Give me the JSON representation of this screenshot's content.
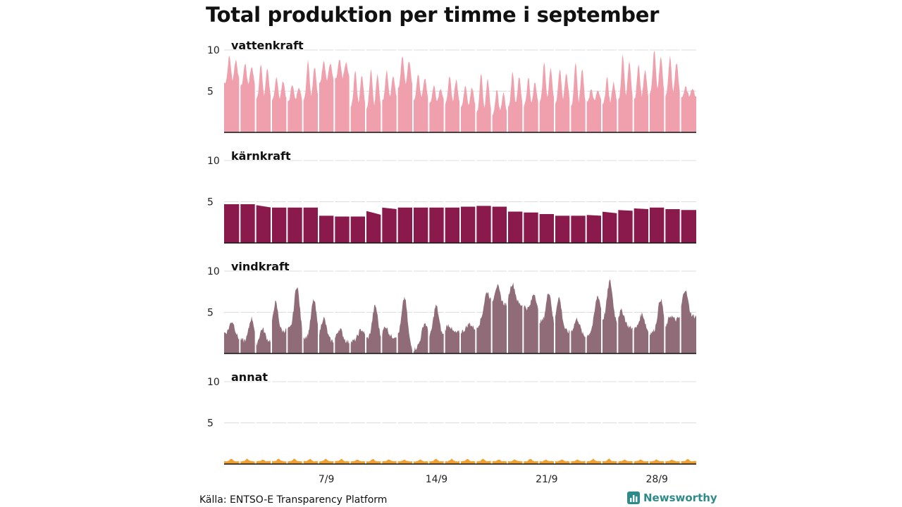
{
  "title": "Total produktion per timme i september",
  "source": "Källa: ENTSO-E Transparency Platform",
  "brand": {
    "name": "Newsworthy",
    "icon": "newsworthy-logo-icon",
    "color": "#2f8a8a"
  },
  "chart_data": {
    "type": "area",
    "title": "Total produktion per timme i september",
    "x_unit": "hour of September",
    "x_ticks": [
      {
        "day": 7,
        "label": "7/9"
      },
      {
        "day": 14,
        "label": "14/9"
      },
      {
        "day": 21,
        "label": "21/9"
      },
      {
        "day": 28,
        "label": "28/9"
      }
    ],
    "y_ticks": [
      5,
      10
    ],
    "ylim": [
      0,
      10
    ],
    "grid": true,
    "day_separators": true,
    "series": [
      {
        "name": "vattenkraft",
        "color": "#f0a0ad",
        "pattern": "daily",
        "daily_peak": [
          9.3,
          8.4,
          8.4,
          6.7,
          5.9,
          8.7,
          8.8,
          8.8,
          7.6,
          7.7,
          7.5,
          9.3,
          7.0,
          5.7,
          6.9,
          5.8,
          7.2,
          5.2,
          7.4,
          6.7,
          8.5,
          7.7,
          8.6,
          5.3,
          6.6,
          9.4,
          8.2,
          10.0,
          9.2,
          5.5
        ],
        "daily_low": [
          6.0,
          5.6,
          4.0,
          3.8,
          3.7,
          4.0,
          6.0,
          6.4,
          3.1,
          2.9,
          3.8,
          5.4,
          4.0,
          3.6,
          3.4,
          3.1,
          2.4,
          2.2,
          3.0,
          3.2,
          3.6,
          3.6,
          3.2,
          3.7,
          3.3,
          3.9,
          4.0,
          4.6,
          4.4,
          4.3
        ]
      },
      {
        "name": "kärnkraft",
        "color": "#8a1a4c",
        "pattern": "flat",
        "daily_peak": [
          4.7,
          4.7,
          4.6,
          4.3,
          4.3,
          4.3,
          3.3,
          3.2,
          3.2,
          3.9,
          4.3,
          4.3,
          4.3,
          4.3,
          4.3,
          4.4,
          4.5,
          4.4,
          3.8,
          3.7,
          3.5,
          3.3,
          3.3,
          3.4,
          3.8,
          4.0,
          4.2,
          4.3,
          4.1,
          4.0
        ],
        "daily_low": [
          4.7,
          4.7,
          4.3,
          4.3,
          4.3,
          4.3,
          3.3,
          3.2,
          3.2,
          3.4,
          4.1,
          4.3,
          4.3,
          4.3,
          4.3,
          4.4,
          4.5,
          4.4,
          3.8,
          3.7,
          3.5,
          3.3,
          3.3,
          3.3,
          3.6,
          3.9,
          4.1,
          4.3,
          4.1,
          4.0
        ]
      },
      {
        "name": "vindkraft",
        "color": "#8f6c78",
        "pattern": "wind",
        "daily_peak": [
          3.9,
          4.3,
          3.0,
          6.2,
          8.2,
          6.5,
          4.3,
          3.0,
          2.9,
          5.8,
          3.3,
          6.8,
          3.7,
          5.8,
          3.5,
          3.6,
          7.5,
          8.2,
          8.5,
          7.3,
          7.5,
          6.8,
          4.2,
          7.0,
          8.8,
          5.2,
          4.8,
          6.6,
          4.6,
          7.8
        ],
        "daily_low": [
          2.5,
          1.7,
          0.9,
          1.6,
          3.0,
          2.0,
          1.6,
          1.5,
          1.4,
          1.8,
          1.5,
          2.2,
          0.4,
          1.8,
          2.2,
          2.6,
          3.0,
          5.8,
          6.0,
          5.9,
          4.0,
          2.8,
          2.6,
          2.0,
          4.0,
          3.7,
          3.0,
          2.5,
          2.7,
          4.5
        ]
      },
      {
        "name": "annat",
        "color": "#f0a030",
        "pattern": "small",
        "daily_peak": [
          0.6,
          0.6,
          0.5,
          0.6,
          0.6,
          0.6,
          0.6,
          0.6,
          0.5,
          0.6,
          0.5,
          0.5,
          0.5,
          0.6,
          0.6,
          0.6,
          0.6,
          0.5,
          0.5,
          0.6,
          0.5,
          0.5,
          0.5,
          0.6,
          0.6,
          0.5,
          0.5,
          0.5,
          0.5,
          0.6
        ],
        "daily_low": [
          0.3,
          0.3,
          0.3,
          0.3,
          0.3,
          0.3,
          0.3,
          0.3,
          0.3,
          0.3,
          0.3,
          0.3,
          0.3,
          0.3,
          0.3,
          0.3,
          0.3,
          0.3,
          0.3,
          0.3,
          0.3,
          0.3,
          0.3,
          0.3,
          0.3,
          0.3,
          0.3,
          0.3,
          0.3,
          0.3
        ]
      }
    ]
  }
}
